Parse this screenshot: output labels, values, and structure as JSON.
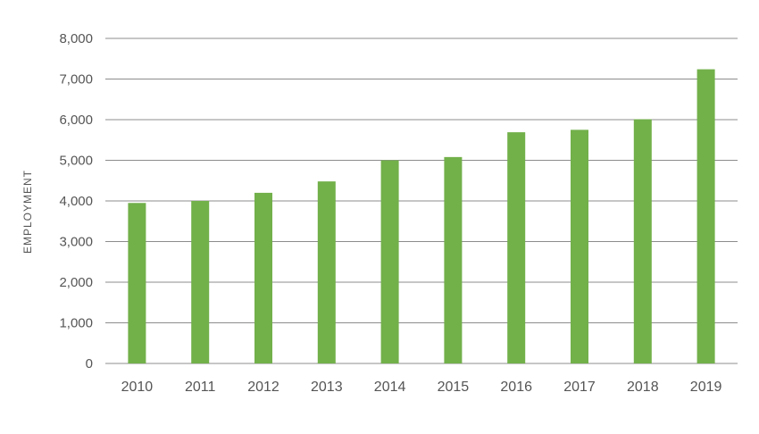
{
  "chart_data": {
    "type": "bar",
    "title": "",
    "xlabel": "",
    "ylabel": "EMPLOYMENT",
    "categories": [
      "2010",
      "2011",
      "2012",
      "2013",
      "2014",
      "2015",
      "2016",
      "2017",
      "2018",
      "2019"
    ],
    "values": [
      3950,
      4000,
      4200,
      4480,
      5000,
      5080,
      5690,
      5750,
      6010,
      7240
    ],
    "ylim": [
      0,
      8000
    ],
    "yticks": [
      0,
      1000,
      2000,
      3000,
      4000,
      5000,
      6000,
      7000,
      8000
    ],
    "ytick_labels": [
      "0",
      "1,000",
      "2,000",
      "3,000",
      "4,000",
      "5,000",
      "6,000",
      "7,000",
      "8,000"
    ],
    "grid": true,
    "legend": "none",
    "colors": {
      "bar": "#72b04a",
      "grid": "#8c8c8c",
      "text": "#555555"
    }
  }
}
